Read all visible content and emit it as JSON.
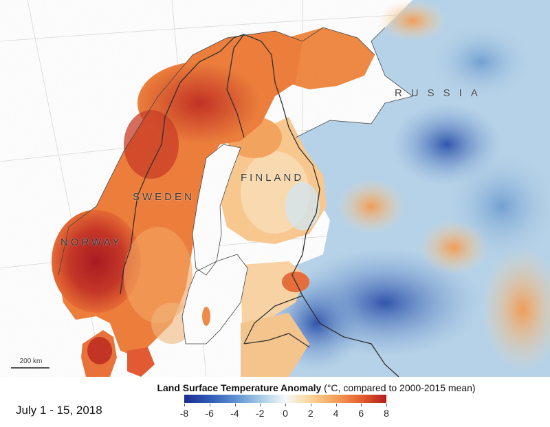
{
  "map": {
    "country_labels": {
      "russia": "RUSSIA",
      "finland": "FINLAND",
      "sweden": "SWEDEN",
      "norway": "NORWAY"
    },
    "scale_bar": "200 km"
  },
  "legend": {
    "title": "Land Surface Temperature Anomaly",
    "units": "(°C, compared to 2000-2015 mean)",
    "ticks": [
      "-8",
      "-6",
      "-4",
      "-2",
      "0",
      "2",
      "4",
      "6",
      "8"
    ],
    "range": [
      -8,
      8
    ],
    "colors": {
      "min": "#1b2d8f",
      "neutral": "#f4f8f8",
      "max": "#b51d1e"
    }
  },
  "date": "July 1 - 15, 2018"
}
